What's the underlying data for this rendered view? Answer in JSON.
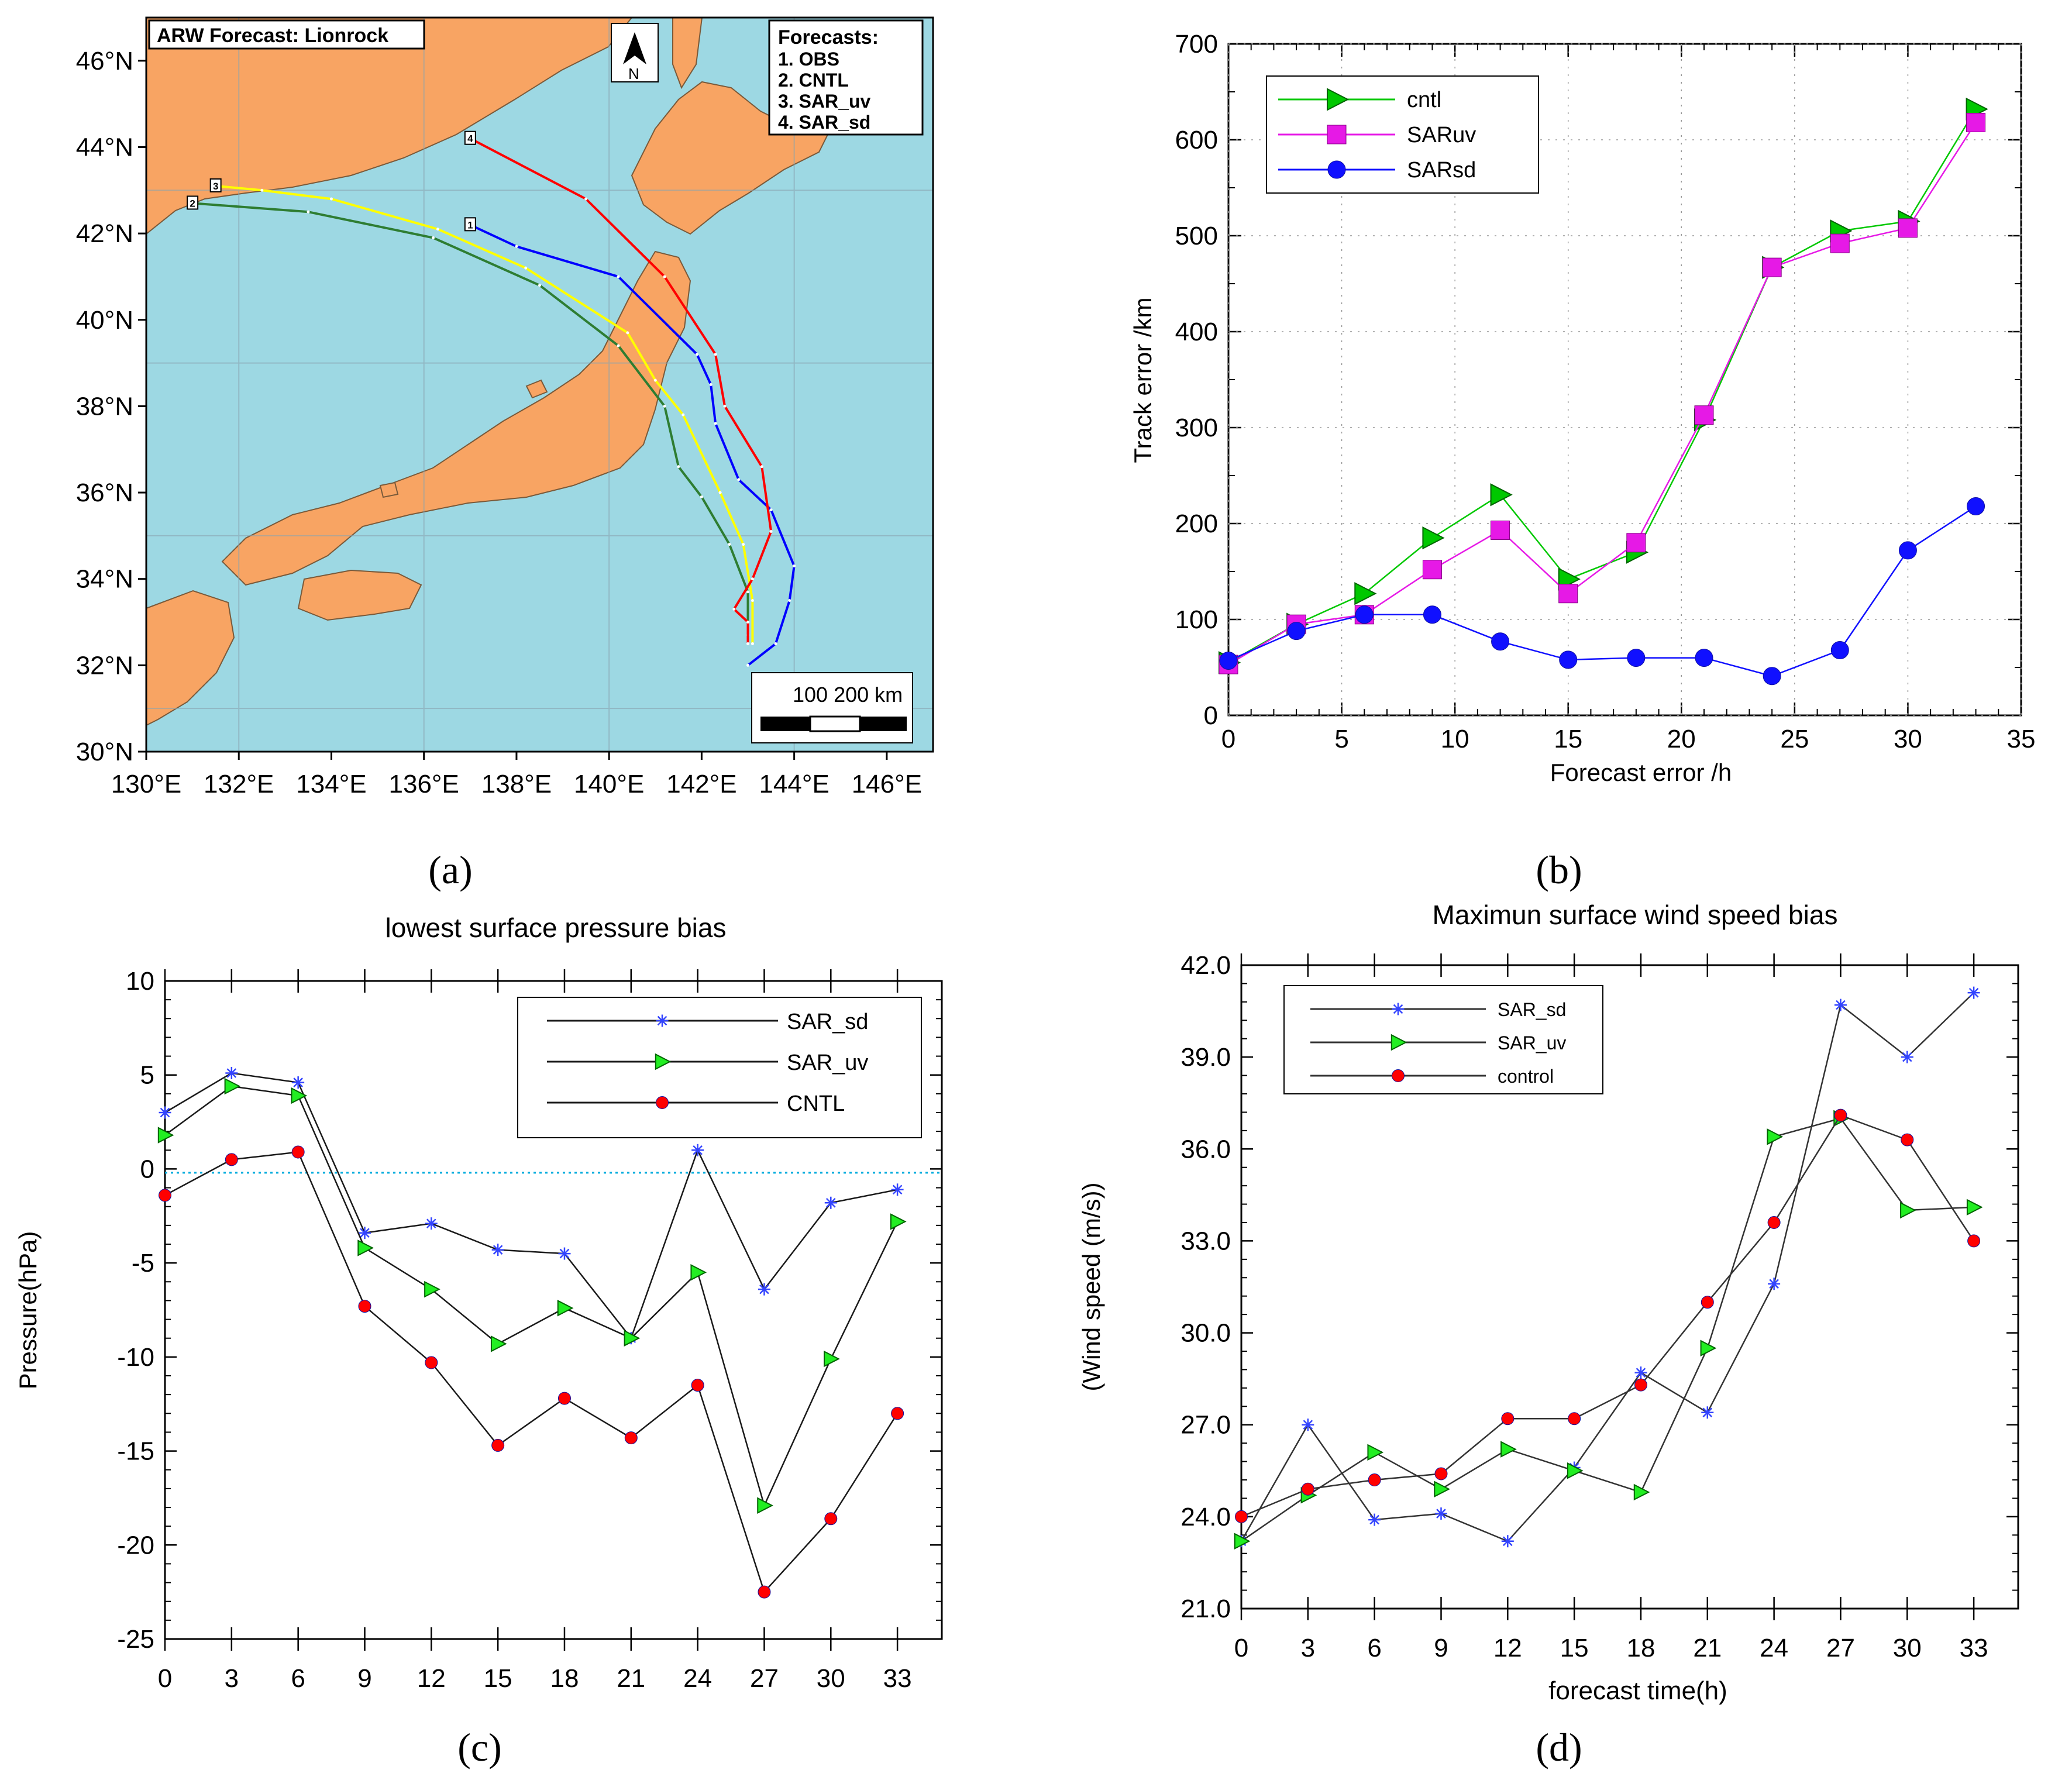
{
  "captions": {
    "a": "(a)",
    "b": "(b)",
    "c": "(c)",
    "d": "(d)"
  },
  "colors": {
    "land": "#F8A463",
    "sea": "#9DD8E3",
    "obs": "#0000FF",
    "cntl": "#2E7D32",
    "saruv": "#FFFF00",
    "sarsd": "#FF0000",
    "green": "#00C800",
    "magenta": "#E619E6",
    "blue": "#1010FF",
    "red": "#FF0000",
    "cyan_line": "#00AADD"
  },
  "chart_data": [
    {
      "id": "a",
      "type": "map",
      "title": "ARW Forecast: Lionrock",
      "north_label": "N",
      "legend_title": "Forecasts:",
      "legend_items": [
        "1. OBS",
        "2. CNTL",
        "3. SAR_uv",
        "4. SAR_sd"
      ],
      "scale_label": "100  200   km",
      "lat_labels": [
        "46°N",
        "44°N",
        "42°N",
        "40°N",
        "38°N",
        "36°N",
        "34°N",
        "32°N",
        "30°N"
      ],
      "lon_labels": [
        "130°E",
        "132°E",
        "134°E",
        "136°E",
        "138°E",
        "140°E",
        "142°E",
        "144°E",
        "146°E"
      ],
      "tracks": [
        {
          "id": "1",
          "name": "OBS",
          "color": "#0000FF",
          "points": [
            [
              143.0,
              32.0
            ],
            [
              143.6,
              32.5
            ],
            [
              143.9,
              33.5
            ],
            [
              144.0,
              34.3
            ],
            [
              143.5,
              35.6
            ],
            [
              142.8,
              36.3
            ],
            [
              142.3,
              37.6
            ],
            [
              142.2,
              38.5
            ],
            [
              141.9,
              39.2
            ],
            [
              140.2,
              41.0
            ],
            [
              138.0,
              41.7
            ],
            [
              137.0,
              42.2
            ]
          ]
        },
        {
          "id": "2",
          "name": "CNTL",
          "color": "#2E7D32",
          "points": [
            [
              143.0,
              32.7
            ],
            [
              143.0,
              33.7
            ],
            [
              142.6,
              34.8
            ],
            [
              142.0,
              35.9
            ],
            [
              141.5,
              36.6
            ],
            [
              141.2,
              38.0
            ],
            [
              140.2,
              39.4
            ],
            [
              138.5,
              40.8
            ],
            [
              136.2,
              41.9
            ],
            [
              133.5,
              42.5
            ],
            [
              131.0,
              42.7
            ]
          ]
        },
        {
          "id": "3",
          "name": "SAR_uv",
          "color": "#FFFF00",
          "points": [
            [
              143.1,
              32.5
            ],
            [
              143.1,
              33.5
            ],
            [
              142.9,
              34.8
            ],
            [
              142.4,
              36.0
            ],
            [
              141.6,
              37.8
            ],
            [
              141.0,
              38.6
            ],
            [
              140.4,
              39.7
            ],
            [
              138.2,
              41.2
            ],
            [
              136.3,
              42.1
            ],
            [
              134.0,
              42.8
            ],
            [
              132.5,
              43.0
            ],
            [
              131.5,
              43.1
            ]
          ]
        },
        {
          "id": "4",
          "name": "SAR_sd",
          "color": "#FF0000",
          "points": [
            [
              143.0,
              32.5
            ],
            [
              143.0,
              33.0
            ],
            [
              142.7,
              33.3
            ],
            [
              143.1,
              34.0
            ],
            [
              143.5,
              35.1
            ],
            [
              143.3,
              36.6
            ],
            [
              142.5,
              38.0
            ],
            [
              142.3,
              39.2
            ],
            [
              141.2,
              41.0
            ],
            [
              139.5,
              42.8
            ],
            [
              137.0,
              44.2
            ]
          ]
        }
      ]
    },
    {
      "id": "b",
      "type": "line",
      "xlabel": "Forecast error /h",
      "ylabel": "Track error /km",
      "xlim": [
        0,
        35
      ],
      "ylim": [
        0,
        700
      ],
      "x_ticks": [
        0,
        5,
        10,
        15,
        20,
        25,
        30,
        35
      ],
      "y_ticks": [
        0,
        100,
        200,
        300,
        400,
        500,
        600,
        700
      ],
      "x": [
        0,
        3,
        6,
        9,
        12,
        15,
        18,
        21,
        24,
        27,
        30,
        33
      ],
      "series": [
        {
          "name": "cntl",
          "marker": "triangle",
          "color": "#00C800",
          "values": [
            55,
            95,
            127,
            185,
            230,
            142,
            170,
            308,
            467,
            505,
            515,
            632
          ]
        },
        {
          "name": "SARuv",
          "marker": "square",
          "color": "#E619E6",
          "values": [
            53,
            95,
            105,
            152,
            193,
            127,
            180,
            313,
            467,
            492,
            508,
            618
          ]
        },
        {
          "name": "SARsd",
          "marker": "circle",
          "color": "#1010FF",
          "values": [
            57,
            88,
            105,
            105,
            77,
            58,
            60,
            60,
            41,
            68,
            172,
            218
          ]
        }
      ]
    },
    {
      "id": "c",
      "type": "line",
      "title": "lowest surface pressure bias",
      "ylabel": "Pressure(hPa)",
      "xlabel": "",
      "ylim": [
        -25,
        10
      ],
      "y_ticks": [
        10,
        5,
        0,
        -5,
        -10,
        -15,
        -20,
        -25
      ],
      "y_tick_labels": [
        "10",
        "5",
        "0",
        "-5",
        "-10",
        "-15",
        "-20",
        "-25"
      ],
      "categories": [
        "0",
        "3",
        "6",
        "9",
        "12",
        "15",
        "18",
        "21",
        "24",
        "27",
        "30",
        "33"
      ],
      "zero_line": -0.2,
      "series": [
        {
          "name": "SAR_sd",
          "marker": "star",
          "color": "#3344FF",
          "values": [
            3.0,
            5.1,
            4.6,
            -3.4,
            -2.9,
            -4.3,
            -4.5,
            -9.0,
            1.0,
            -6.4,
            -1.8,
            -1.1
          ]
        },
        {
          "name": "SAR_uv",
          "marker": "triangle",
          "color": "#22EE22",
          "values": [
            1.8,
            4.4,
            3.9,
            -4.2,
            -6.4,
            -9.3,
            -7.4,
            -9.0,
            -5.5,
            -17.9,
            -10.1,
            -2.8
          ]
        },
        {
          "name": "CNTL",
          "marker": "circle",
          "color": "#FF0000",
          "values": [
            -1.4,
            0.5,
            0.9,
            -7.3,
            -10.3,
            -14.7,
            -12.2,
            -14.3,
            -11.5,
            -22.5,
            -18.6,
            -13.0
          ]
        }
      ]
    },
    {
      "id": "d",
      "type": "line",
      "title": "Maximun surface wind speed bias",
      "xlabel": "forecast time(h)",
      "ylabel": "(Wind speed (m/s))",
      "ylim": [
        21,
        42
      ],
      "y_ticks": [
        21,
        24,
        27,
        30,
        33,
        36,
        39,
        42
      ],
      "y_tick_labels": [
        "21.0",
        "24.0",
        "27.0",
        "30.0",
        "33.0",
        "36.0",
        "39.0",
        "42.0"
      ],
      "categories": [
        "0",
        "3",
        "6",
        "9",
        "12",
        "15",
        "18",
        "21",
        "24",
        "27",
        "30",
        "33"
      ],
      "series": [
        {
          "name": "SAR_sd",
          "marker": "star",
          "color": "#3344FF",
          "values": [
            23.2,
            27.0,
            23.9,
            24.1,
            23.2,
            25.6,
            28.7,
            27.4,
            31.6,
            40.7,
            39.0,
            41.1
          ]
        },
        {
          "name": "SAR_uv",
          "marker": "triangle",
          "color": "#22EE22",
          "values": [
            23.2,
            24.7,
            26.1,
            24.9,
            26.2,
            25.5,
            24.8,
            29.5,
            36.4,
            37.0,
            34.0,
            34.1
          ]
        },
        {
          "name": "control",
          "marker": "circle",
          "color": "#FF0000",
          "values": [
            24.0,
            24.9,
            25.2,
            25.4,
            27.2,
            27.2,
            28.3,
            31.0,
            33.6,
            37.1,
            36.3,
            33.0
          ]
        }
      ]
    }
  ]
}
